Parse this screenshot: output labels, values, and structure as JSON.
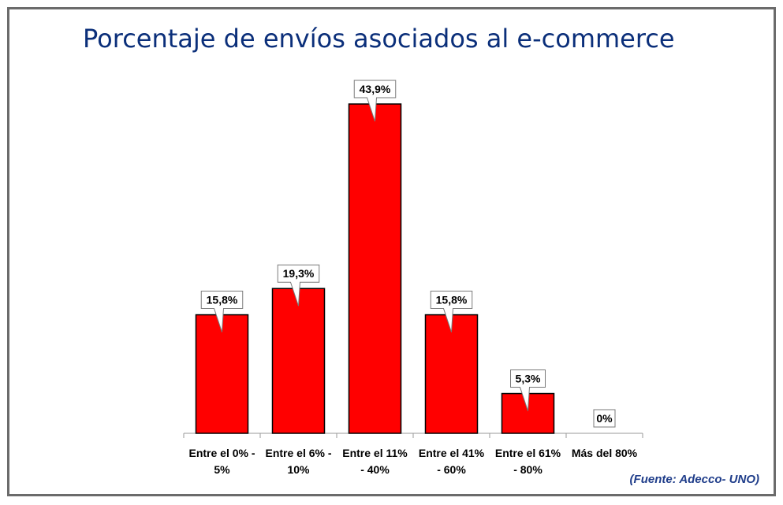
{
  "chart_data": {
    "type": "bar",
    "title": "Porcentaje de envíos asociados al e-commerce",
    "categories": [
      [
        "Entre el 0% -",
        "5%"
      ],
      [
        "Entre el 6% -",
        "10%"
      ],
      [
        "Entre el 11%",
        "- 40%"
      ],
      [
        "Entre el 41%",
        "- 60%"
      ],
      [
        "Entre el 61%",
        "- 80%"
      ],
      [
        "Más del 80%"
      ]
    ],
    "values": [
      15.8,
      19.3,
      43.9,
      15.8,
      5.3,
      0
    ],
    "data_labels": [
      "15,8%",
      "19,3%",
      "43,9%",
      "15,8%",
      "5,3%",
      "0%"
    ],
    "xlabel": "",
    "ylabel": "",
    "y_axis_visible": false,
    "grid": false,
    "legend": "none",
    "bar_color": "#ff0000",
    "bar_border_color": "#000000",
    "title_color": "#0b2f7a"
  },
  "source": "(Fuente: Adecco- UNO)"
}
